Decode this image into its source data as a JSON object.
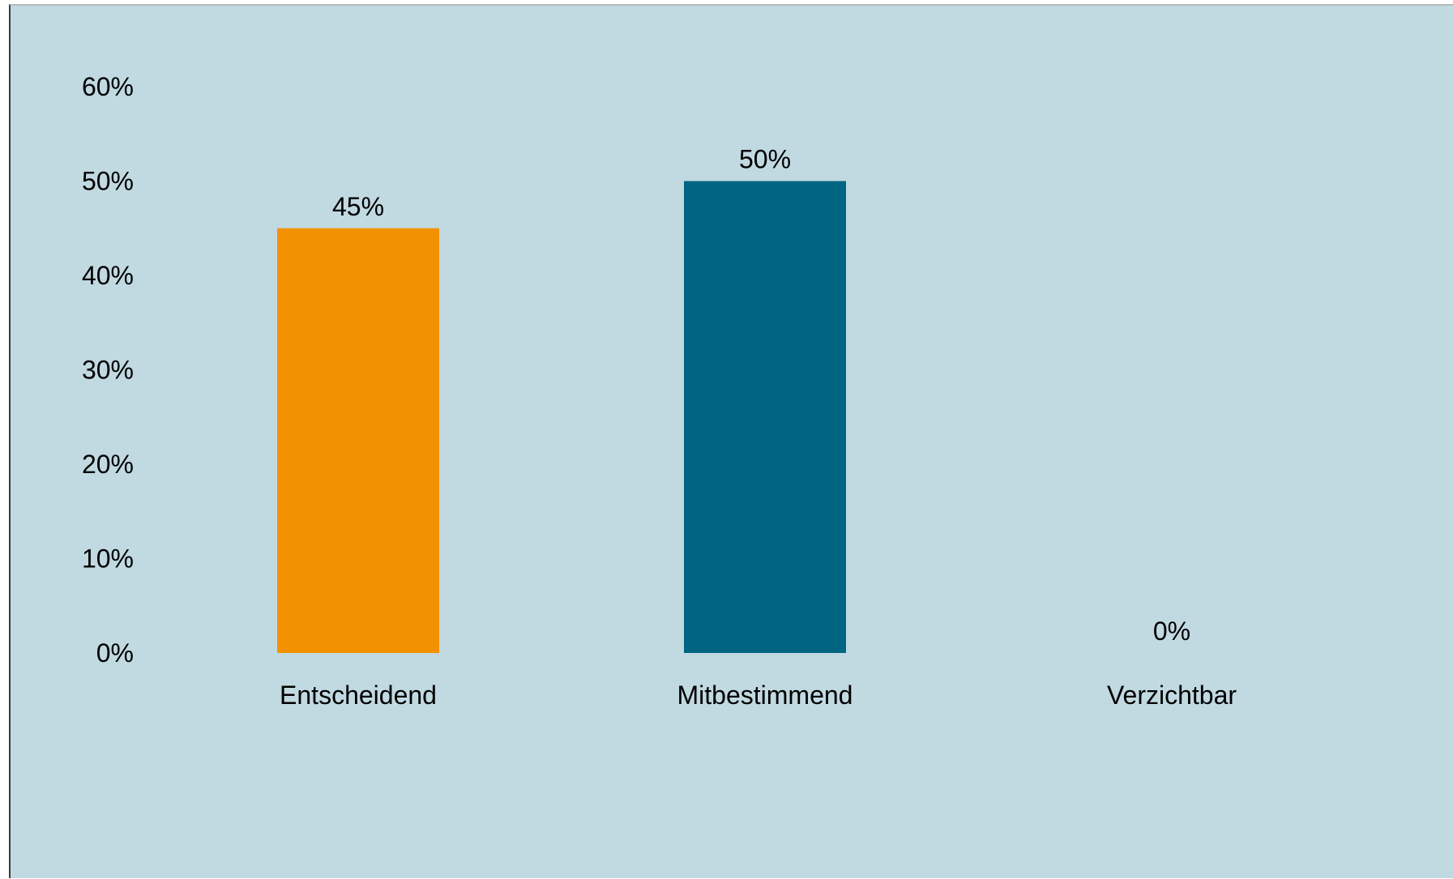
{
  "chart_data": {
    "type": "bar",
    "title": "",
    "xlabel": "",
    "ylabel": "",
    "categories": [
      "Entscheidend",
      "Mitbestimmend",
      "Verzichtbar"
    ],
    "values": [
      45,
      50,
      0
    ],
    "value_labels": [
      "45%",
      "50%",
      "0%"
    ],
    "bar_colors": [
      "#f39200",
      "#006580",
      "#006580"
    ],
    "ylim": [
      0,
      60
    ],
    "y_ticks": [
      0,
      10,
      20,
      30,
      40,
      50,
      60
    ],
    "y_tick_labels": [
      "0%",
      "10%",
      "20%",
      "30%",
      "40%",
      "50%",
      "60%"
    ],
    "grid": false,
    "legend": "none",
    "background_color": "#c1d9e1"
  }
}
